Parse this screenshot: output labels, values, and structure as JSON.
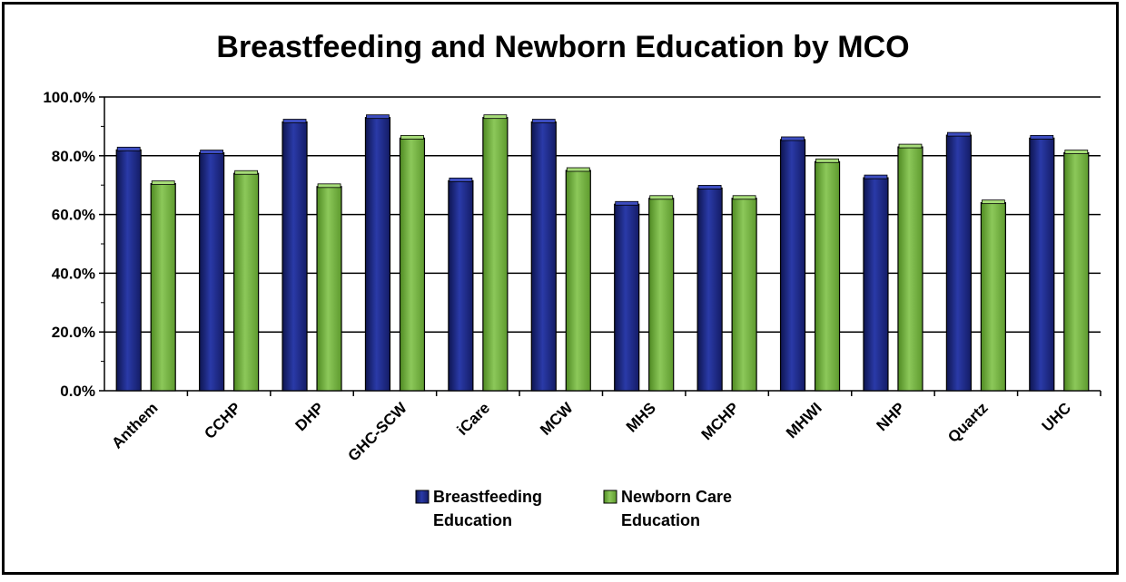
{
  "chart_data": {
    "type": "bar",
    "title": "Breastfeeding and Newborn Education by MCO",
    "xlabel": "",
    "ylabel": "",
    "ylim": [
      0,
      100
    ],
    "yticks": [
      "0.0%",
      "20.0%",
      "40.0%",
      "60.0%",
      "80.0%",
      "100.0%"
    ],
    "grid": true,
    "legend_position": "bottom",
    "categories": [
      "Anthem",
      "CCHP",
      "DHP",
      "GHC-SCW",
      "iCare",
      "MCW",
      "MHS",
      "MCHP",
      "MHWI",
      "NHP",
      "Quartz",
      "UHC"
    ],
    "series": [
      {
        "name_lines": [
          "Breastfeeding",
          "Education"
        ],
        "color": "#1f2b8a",
        "values": [
          82.0,
          81.0,
          91.5,
          93.0,
          71.5,
          91.5,
          63.5,
          69.0,
          85.5,
          72.5,
          87.0,
          86.0
        ]
      },
      {
        "name_lines": [
          "Newborn Care",
          "Education"
        ],
        "color": "#7ab648",
        "values": [
          70.5,
          74.0,
          69.5,
          86.0,
          93.0,
          75.0,
          65.5,
          65.5,
          78.0,
          83.0,
          64.0,
          81.0
        ]
      }
    ]
  }
}
